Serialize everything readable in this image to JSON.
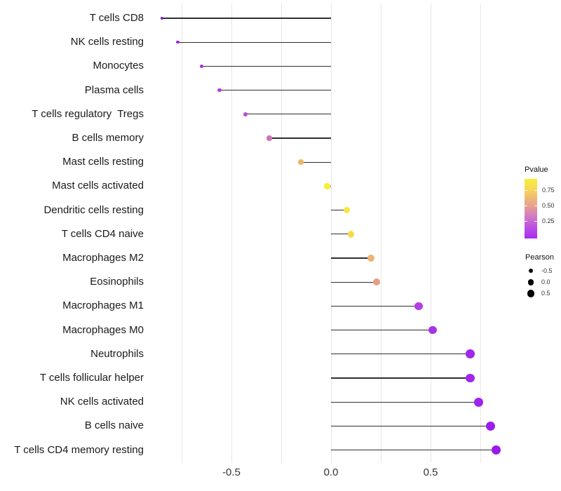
{
  "chart_data": {
    "type": "scatter",
    "subtype": "lollipop",
    "title": "",
    "xlabel": "",
    "ylabel": "",
    "grid": "vertical-only",
    "xlim": [
      -0.92,
      0.9
    ],
    "gridline_values": [
      -0.75,
      -0.5,
      -0.25,
      0,
      0.25,
      0.5,
      0.75
    ],
    "x_ticks": [
      {
        "value": -0.5,
        "label": "-0.5"
      },
      {
        "value": 0.0,
        "label": "0.0"
      },
      {
        "value": 0.5,
        "label": "0.5"
      }
    ],
    "categories": [
      "T cells CD8",
      "NK cells resting",
      "Monocytes",
      "Plasma cells",
      "T cells regulatory  Tregs",
      "B cells memory",
      "Mast cells resting",
      "Mast cells activated",
      "Dendritic cells resting",
      "T cells CD4 naive",
      "Macrophages M2",
      "Eosinophils",
      "Macrophages M1",
      "Macrophages M0",
      "Neutrophils",
      "T cells follicular helper",
      "NK cells activated",
      "B cells naive",
      "T cells CD4 memory resting"
    ],
    "points": [
      {
        "label": "T cells CD8",
        "pearson": -0.85,
        "pvalue": 0.03,
        "color": "#7c1ed6"
      },
      {
        "label": "NK cells resting",
        "pearson": -0.77,
        "pvalue": 0.07,
        "color": "#9c29e4"
      },
      {
        "label": "Monocytes",
        "pearson": -0.65,
        "pvalue": 0.09,
        "color": "#a933e2"
      },
      {
        "label": "Plasma cells",
        "pearson": -0.56,
        "pvalue": 0.11,
        "color": "#b13de0"
      },
      {
        "label": "T cells regulatory  Tregs",
        "pearson": -0.43,
        "pvalue": 0.18,
        "color": "#bb48d3"
      },
      {
        "label": "B cells memory",
        "pearson": -0.31,
        "pvalue": 0.38,
        "color": "#cf74b6"
      },
      {
        "label": "Mast cells resting",
        "pearson": -0.15,
        "pvalue": 0.62,
        "color": "#eeb46a"
      },
      {
        "label": "Mast cells activated",
        "pearson": -0.02,
        "pvalue": 0.9,
        "color": "#f8ee33"
      },
      {
        "label": "Dendritic cells resting",
        "pearson": 0.08,
        "pvalue": 0.85,
        "color": "#f7e83c"
      },
      {
        "label": "T cells CD4 naive",
        "pearson": 0.1,
        "pvalue": 0.8,
        "color": "#f6dc4b"
      },
      {
        "label": "Macrophages M2",
        "pearson": 0.2,
        "pvalue": 0.6,
        "color": "#edb271"
      },
      {
        "label": "Eosinophils",
        "pearson": 0.23,
        "pvalue": 0.5,
        "color": "#e59c87"
      },
      {
        "label": "Macrophages M1",
        "pearson": 0.44,
        "pvalue": 0.13,
        "color": "#b140e0"
      },
      {
        "label": "Macrophages M0",
        "pearson": 0.51,
        "pvalue": 0.1,
        "color": "#a934e4"
      },
      {
        "label": "Neutrophils",
        "pearson": 0.7,
        "pvalue": 0.05,
        "color": "#a127e8"
      },
      {
        "label": "T cells follicular helper",
        "pearson": 0.7,
        "pvalue": 0.05,
        "color": "#a127e8"
      },
      {
        "label": "NK cells activated",
        "pearson": 0.74,
        "pvalue": 0.04,
        "color": "#9e24e9"
      },
      {
        "label": "B cells naive",
        "pearson": 0.8,
        "pvalue": 0.03,
        "color": "#9a1eeb"
      },
      {
        "label": "T cells CD4 memory resting",
        "pearson": 0.83,
        "pvalue": 0.02,
        "color": "#981bec"
      }
    ],
    "legend": {
      "pvalue": {
        "title": "Pvalue",
        "gradient_bottom_to_top": [
          {
            "pos": 0,
            "color": "#a62bf2"
          },
          {
            "pos": 18,
            "color": "#bb4fe3"
          },
          {
            "pos": 38,
            "color": "#d37cc2"
          },
          {
            "pos": 52,
            "color": "#e59a94"
          },
          {
            "pos": 66,
            "color": "#eeb577"
          },
          {
            "pos": 82,
            "color": "#f6d75a"
          },
          {
            "pos": 100,
            "color": "#f8ee38"
          }
        ],
        "ticks": [
          {
            "label": "0.75",
            "frac_from_top": 0.188
          },
          {
            "label": "0.50",
            "frac_from_top": 0.444
          },
          {
            "label": "0.25",
            "frac_from_top": 0.706
          }
        ]
      },
      "pearson": {
        "title": "Pearson",
        "items": [
          {
            "label": "-0.5",
            "radius": 3.3
          },
          {
            "label": "0.0",
            "radius": 4.3
          },
          {
            "label": "0.5",
            "radius": 5.3
          }
        ]
      }
    }
  }
}
